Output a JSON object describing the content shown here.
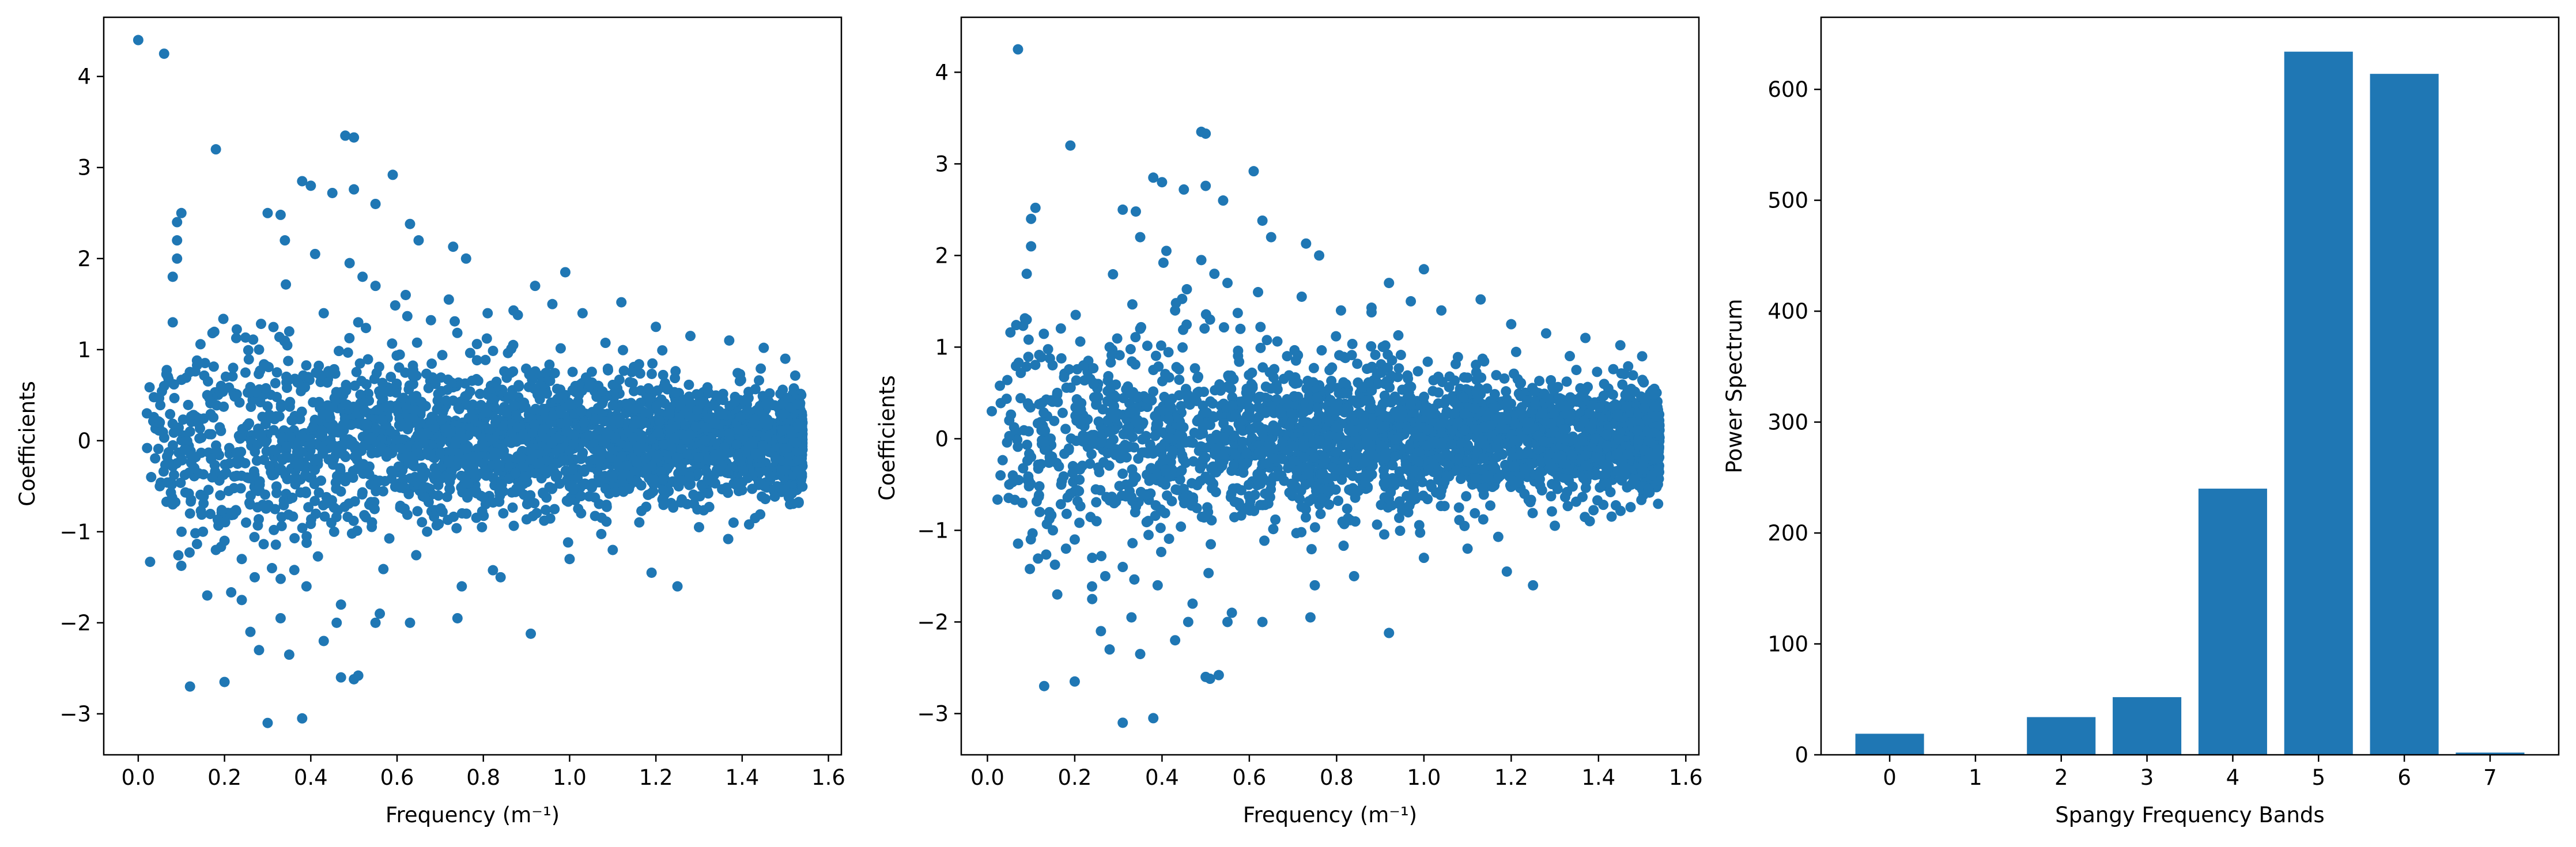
{
  "chart_data": [
    {
      "type": "scatter",
      "xlabel": "Frequency (m⁻¹)",
      "ylabel": "Coefficients",
      "xlim": [
        -0.08,
        1.63
      ],
      "ylim": [
        -3.45,
        4.65
      ],
      "xticks": [
        0.0,
        0.2,
        0.4,
        0.6,
        0.8,
        1.0,
        1.2,
        1.4,
        1.6
      ],
      "xtick_labels": [
        "0.0",
        "0.2",
        "0.4",
        "0.6",
        "0.8",
        "1.0",
        "1.2",
        "1.4",
        "1.6"
      ],
      "yticks": [
        -3,
        -2,
        -1,
        0,
        1,
        2,
        3,
        4
      ],
      "ytick_labels": [
        "−3",
        "−2",
        "−1",
        "0",
        "1",
        "2",
        "3",
        "4"
      ],
      "color": "#1f77b4",
      "grid": false,
      "points_x": [
        0.0,
        0.06,
        0.18,
        0.08,
        0.1,
        0.09,
        0.09,
        0.09,
        0.08,
        0.06,
        0.48,
        0.5,
        0.59,
        0.38,
        0.4,
        0.45,
        0.5,
        0.55,
        0.3,
        0.33,
        0.34,
        0.41,
        0.49,
        0.52,
        0.55,
        0.63,
        0.65,
        0.73,
        0.76,
        0.99,
        0.92,
        0.87,
        0.96,
        1.03,
        1.12,
        1.2,
        1.28,
        1.37,
        1.45,
        1.5,
        0.05,
        0.03,
        0.08,
        0.12,
        0.15,
        0.18,
        0.2,
        0.24,
        0.27,
        0.02,
        0.05,
        0.1,
        0.12,
        0.13,
        0.16,
        0.19,
        0.22,
        0.25,
        0.28,
        0.31,
        0.35,
        0.39,
        0.43,
        0.47,
        0.51,
        0.55,
        0.12,
        0.2,
        0.3,
        0.38,
        0.47,
        0.5,
        0.51,
        0.28,
        0.35,
        0.24,
        0.33,
        0.16,
        0.26,
        0.43,
        0.46,
        0.56,
        0.63,
        0.74,
        0.75,
        0.84,
        0.91,
        1.0,
        1.1,
        1.19,
        1.25,
        1.3,
        1.38,
        1.43,
        0.62,
        0.72,
        0.81,
        0.88
      ],
      "points_y": [
        4.4,
        4.25,
        3.2,
        1.3,
        2.5,
        2.4,
        2.2,
        2.0,
        1.8,
        0.6,
        3.35,
        3.33,
        2.92,
        2.85,
        2.8,
        2.72,
        2.76,
        2.6,
        2.5,
        2.48,
        2.2,
        2.05,
        1.95,
        1.8,
        1.7,
        2.38,
        2.2,
        2.13,
        2.0,
        1.85,
        1.7,
        1.43,
        1.5,
        1.4,
        1.52,
        1.25,
        1.15,
        1.1,
        1.02,
        0.9,
        -0.5,
        -0.4,
        -0.7,
        -0.8,
        -1.0,
        -1.2,
        -1.1,
        -1.3,
        -1.5,
        0.3,
        0.2,
        -0.2,
        0.1,
        -0.3,
        0.5,
        -0.6,
        0.8,
        -0.9,
        1.0,
        -1.4,
        1.2,
        -1.6,
        1.4,
        -1.8,
        1.3,
        -2.0,
        -2.7,
        -2.65,
        -3.1,
        -3.05,
        -2.6,
        -2.62,
        -2.58,
        -2.3,
        -2.35,
        -1.75,
        -1.95,
        -1.7,
        -2.1,
        -2.2,
        -2.0,
        -1.9,
        -2.0,
        -1.95,
        -1.6,
        -1.5,
        -2.12,
        -1.3,
        -1.2,
        -1.45,
        -1.6,
        -0.95,
        -0.9,
        -0.85,
        1.6,
        1.55,
        1.4,
        1.38
      ],
      "dense_band": {
        "x_range": [
          0.02,
          1.54
        ],
        "y_half_width_start": 1.4,
        "y_half_width_end": 0.65
      }
    },
    {
      "type": "scatter",
      "xlabel": "Frequency (m⁻¹)",
      "ylabel": "Coefficients",
      "xlim": [
        -0.06,
        1.63
      ],
      "ylim": [
        -3.45,
        4.6
      ],
      "xticks": [
        0.0,
        0.2,
        0.4,
        0.6,
        0.8,
        1.0,
        1.2,
        1.4,
        1.6
      ],
      "xtick_labels": [
        "0.0",
        "0.2",
        "0.4",
        "0.6",
        "0.8",
        "1.0",
        "1.2",
        "1.4",
        "1.6"
      ],
      "yticks": [
        -3,
        -2,
        -1,
        0,
        1,
        2,
        3,
        4
      ],
      "ytick_labels": [
        "−3",
        "−2",
        "−1",
        "0",
        "1",
        "2",
        "3",
        "4"
      ],
      "color": "#1f77b4",
      "grid": false,
      "points_x": [
        0.07,
        0.19,
        0.11,
        0.1,
        0.1,
        0.09,
        0.09,
        0.49,
        0.5,
        0.61,
        0.38,
        0.4,
        0.45,
        0.5,
        0.54,
        0.31,
        0.34,
        0.35,
        0.41,
        0.49,
        0.52,
        0.55,
        0.63,
        0.65,
        0.73,
        0.76,
        1.0,
        0.92,
        0.88,
        0.97,
        1.04,
        1.13,
        1.2,
        1.28,
        1.37,
        1.45,
        1.5,
        0.05,
        0.03,
        0.08,
        0.12,
        0.15,
        0.18,
        0.2,
        0.24,
        0.27,
        0.01,
        0.05,
        0.1,
        0.13,
        0.16,
        0.19,
        0.22,
        0.25,
        0.28,
        0.31,
        0.35,
        0.39,
        0.43,
        0.47,
        0.51,
        0.55,
        0.13,
        0.2,
        0.31,
        0.38,
        0.5,
        0.51,
        0.53,
        0.28,
        0.35,
        0.24,
        0.33,
        0.16,
        0.26,
        0.43,
        0.46,
        0.56,
        0.63,
        0.74,
        0.75,
        0.84,
        0.92,
        1.0,
        1.1,
        1.19,
        1.25,
        1.3,
        1.38,
        1.43,
        0.62,
        0.72,
        0.81,
        0.88
      ],
      "points_y": [
        4.25,
        3.2,
        2.52,
        2.4,
        2.1,
        1.8,
        1.3,
        3.35,
        3.33,
        2.92,
        2.85,
        2.8,
        2.72,
        2.76,
        2.6,
        2.5,
        2.48,
        2.2,
        2.05,
        1.95,
        1.8,
        1.7,
        2.38,
        2.2,
        2.13,
        2.0,
        1.85,
        1.7,
        1.43,
        1.5,
        1.4,
        1.52,
        1.25,
        1.15,
        1.1,
        1.02,
        0.9,
        -0.5,
        -0.4,
        -0.7,
        -0.8,
        -1.0,
        -1.2,
        -1.1,
        -1.3,
        -1.5,
        0.3,
        0.2,
        -0.2,
        0.1,
        0.5,
        -0.6,
        0.8,
        -0.9,
        1.0,
        -1.4,
        1.2,
        -1.6,
        1.4,
        -1.8,
        1.3,
        -2.0,
        -2.7,
        -2.65,
        -3.1,
        -3.05,
        -2.6,
        -2.62,
        -2.58,
        -2.3,
        -2.35,
        -1.75,
        -1.95,
        -1.7,
        -2.1,
        -2.2,
        -2.0,
        -1.9,
        -2.0,
        -1.95,
        -1.6,
        -1.5,
        -2.12,
        -1.3,
        -1.2,
        -1.45,
        -1.6,
        -0.95,
        -0.9,
        -0.85,
        1.6,
        1.55,
        1.4,
        1.38
      ],
      "dense_band": {
        "x_range": [
          0.02,
          1.54
        ],
        "y_half_width_start": 1.4,
        "y_half_width_end": 0.65
      }
    },
    {
      "type": "bar",
      "xlabel": "Spangy Frequency Bands",
      "ylabel": "Power Spectrum",
      "categories": [
        "0",
        "1",
        "2",
        "3",
        "4",
        "5",
        "6",
        "7"
      ],
      "values": [
        19,
        0.5,
        34,
        52,
        240,
        634,
        614,
        2
      ],
      "xlim": [
        -0.8,
        7.8
      ],
      "ylim": [
        0,
        665
      ],
      "yticks": [
        0,
        100,
        200,
        300,
        400,
        500,
        600
      ],
      "ytick_labels": [
        "0",
        "100",
        "200",
        "300",
        "400",
        "500",
        "600"
      ],
      "color": "#1f77b4",
      "grid": false
    }
  ]
}
